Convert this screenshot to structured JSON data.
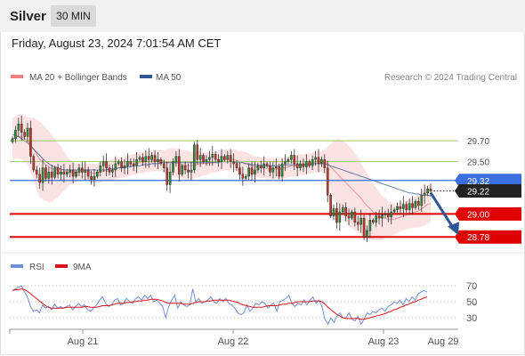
{
  "instrument": "Silver",
  "timeframe": "30 MIN",
  "datetime": "Friday, August 23, 2024 7:01:54 AM CET",
  "credit": "Research © 2024 Trading Central",
  "colors": {
    "bollinger": "#f08080",
    "ma50": "#2f5597",
    "pivot": "#3a6fe0",
    "support": "#e00000",
    "resistance": "#9bc86a",
    "current": "#222222",
    "rsi": "#6f8fd8",
    "rsi_ma": "#d9141b",
    "up_candle": "#2e8b3a",
    "down_candle": "#c0392b"
  },
  "chart_data": [
    {
      "type": "candlestick",
      "legend": [
        "MA 20 + Bollinger Bands",
        "MA 50"
      ],
      "x_ticks": [
        "Aug 21",
        "Aug 22",
        "Aug 23",
        "Aug 29"
      ],
      "ylim": [
        28.68,
        30.16
      ],
      "close": [
        29.72,
        29.8,
        29.86,
        29.78,
        29.74,
        29.82,
        29.55,
        29.42,
        29.38,
        29.3,
        29.44,
        29.34,
        29.4,
        29.35,
        29.44,
        29.38,
        29.4,
        29.38,
        29.4,
        29.42,
        29.36,
        29.4,
        29.44,
        29.4,
        29.42,
        29.36,
        29.33,
        29.36,
        29.4,
        29.46,
        29.5,
        29.44,
        29.4,
        29.42,
        29.48,
        29.5,
        29.44,
        29.46,
        29.5,
        29.48,
        29.46,
        29.52,
        29.54,
        29.5,
        29.55,
        29.52,
        29.56,
        29.5,
        29.52,
        29.48,
        29.44,
        29.28,
        29.4,
        29.5,
        29.55,
        29.38,
        29.46,
        29.42,
        29.4,
        29.42,
        29.66,
        29.52,
        29.56,
        29.5,
        29.52,
        29.54,
        29.57,
        29.52,
        29.5,
        29.55,
        29.52,
        29.56,
        29.5,
        29.48,
        29.44,
        29.38,
        29.34,
        29.36,
        29.44,
        29.38,
        29.42,
        29.46,
        29.44,
        29.48,
        29.46,
        29.4,
        29.44,
        29.45,
        29.36,
        29.48,
        29.5,
        29.52,
        29.56,
        29.48,
        29.44,
        29.48,
        29.45,
        29.5,
        29.46,
        29.52,
        29.54,
        29.48,
        29.52,
        29.44,
        29.18,
        28.98,
        29.05,
        28.92,
        29.02,
        29.06,
        28.98,
        28.96,
        29.02,
        28.92,
        28.9,
        28.96,
        28.78,
        28.84,
        28.94,
        28.92,
        28.98,
        28.96,
        28.99,
        29.0,
        28.97,
        29.02,
        29.04,
        29.07,
        29.05,
        29.09,
        29.04,
        29.1,
        29.06,
        29.12,
        29.08,
        29.18,
        29.2,
        29.24,
        29.22
      ],
      "ma20": [
        29.72,
        29.73,
        29.74,
        29.74,
        29.72,
        29.7,
        29.66,
        29.62,
        29.57,
        29.52,
        29.5,
        29.47,
        29.45,
        29.43,
        29.43,
        29.42,
        29.42,
        29.41,
        29.4,
        29.4,
        29.39,
        29.39,
        29.4,
        29.4,
        29.4,
        29.4,
        29.39,
        29.39,
        29.39,
        29.4,
        29.41,
        29.41,
        29.41,
        29.42,
        29.43,
        29.44,
        29.44,
        29.45,
        29.46,
        29.47,
        29.47,
        29.48,
        29.49,
        29.49,
        29.5,
        29.5,
        29.51,
        29.51,
        29.51,
        29.51,
        29.5,
        29.49,
        29.49,
        29.49,
        29.49,
        29.48,
        29.47,
        29.47,
        29.46,
        29.46,
        29.47,
        29.47,
        29.48,
        29.48,
        29.48,
        29.49,
        29.49,
        29.5,
        29.5,
        29.51,
        29.52,
        29.52,
        29.52,
        29.52,
        29.51,
        29.5,
        29.49,
        29.48,
        29.47,
        29.46,
        29.45,
        29.45,
        29.44,
        29.44,
        29.43,
        29.43,
        29.43,
        29.43,
        29.43,
        29.44,
        29.44,
        29.45,
        29.46,
        29.46,
        29.46,
        29.47,
        29.47,
        29.48,
        29.48,
        29.49,
        29.5,
        29.5,
        29.5,
        29.5,
        29.48,
        29.45,
        29.42,
        29.39,
        29.36,
        29.33,
        29.3,
        29.27,
        29.24,
        29.21,
        29.18,
        29.15,
        29.11,
        29.08,
        29.05,
        29.02,
        29.0,
        28.98,
        28.96,
        28.96,
        28.95,
        28.95,
        28.95,
        28.96,
        28.97,
        28.98,
        28.99,
        29.0,
        29.01,
        29.02,
        29.03,
        29.05,
        29.07,
        29.09,
        29.1
      ],
      "bb_width": [
        0.2,
        0.2,
        0.21,
        0.22,
        0.22,
        0.22,
        0.26,
        0.3,
        0.33,
        0.36,
        0.36,
        0.35,
        0.34,
        0.32,
        0.29,
        0.26,
        0.23,
        0.19,
        0.15,
        0.12,
        0.1,
        0.09,
        0.08,
        0.08,
        0.08,
        0.08,
        0.09,
        0.09,
        0.09,
        0.1,
        0.1,
        0.1,
        0.1,
        0.1,
        0.1,
        0.1,
        0.1,
        0.1,
        0.1,
        0.1,
        0.1,
        0.1,
        0.1,
        0.1,
        0.1,
        0.1,
        0.1,
        0.1,
        0.1,
        0.1,
        0.11,
        0.13,
        0.14,
        0.14,
        0.14,
        0.14,
        0.14,
        0.14,
        0.14,
        0.13,
        0.13,
        0.12,
        0.12,
        0.11,
        0.11,
        0.1,
        0.1,
        0.1,
        0.1,
        0.1,
        0.1,
        0.1,
        0.1,
        0.1,
        0.1,
        0.1,
        0.11,
        0.11,
        0.11,
        0.1,
        0.1,
        0.1,
        0.1,
        0.1,
        0.1,
        0.1,
        0.1,
        0.1,
        0.1,
        0.1,
        0.1,
        0.1,
        0.1,
        0.1,
        0.1,
        0.1,
        0.1,
        0.1,
        0.1,
        0.1,
        0.1,
        0.1,
        0.1,
        0.11,
        0.16,
        0.22,
        0.27,
        0.32,
        0.35,
        0.37,
        0.38,
        0.38,
        0.38,
        0.37,
        0.36,
        0.34,
        0.33,
        0.31,
        0.29,
        0.27,
        0.25,
        0.23,
        0.21,
        0.19,
        0.17,
        0.16,
        0.15,
        0.14,
        0.14,
        0.14,
        0.14,
        0.14,
        0.14,
        0.15,
        0.16,
        0.17,
        0.18,
        0.18,
        0.18
      ],
      "ma50": [
        29.76,
        29.75,
        29.74,
        29.72,
        29.7,
        29.68,
        29.65,
        29.62,
        29.59,
        29.56,
        29.53,
        29.5,
        29.48,
        29.46,
        29.45,
        29.44,
        29.43,
        29.42,
        29.42,
        29.42,
        29.42,
        29.42,
        29.42,
        29.42,
        29.42,
        29.42,
        29.42,
        29.42,
        29.42,
        29.42,
        29.42,
        29.42,
        29.43,
        29.43,
        29.43,
        29.44,
        29.44,
        29.44,
        29.45,
        29.45,
        29.46,
        29.46,
        29.46,
        29.47,
        29.47,
        29.47,
        29.48,
        29.48,
        29.48,
        29.49,
        29.49,
        29.49,
        29.49,
        29.49,
        29.49,
        29.49,
        29.49,
        29.49,
        29.49,
        29.49,
        29.49,
        29.49,
        29.49,
        29.49,
        29.49,
        29.49,
        29.49,
        29.49,
        29.49,
        29.5,
        29.5,
        29.5,
        29.5,
        29.5,
        29.49,
        29.49,
        29.49,
        29.48,
        29.48,
        29.47,
        29.47,
        29.47,
        29.46,
        29.46,
        29.46,
        29.46,
        29.46,
        29.46,
        29.46,
        29.47,
        29.47,
        29.47,
        29.47,
        29.47,
        29.47,
        29.47,
        29.47,
        29.47,
        29.47,
        29.48,
        29.48,
        29.48,
        29.48,
        29.48,
        29.47,
        29.46,
        29.45,
        29.44,
        29.43,
        29.42,
        29.41,
        29.4,
        29.39,
        29.38,
        29.37,
        29.36,
        29.35,
        29.34,
        29.33,
        29.32,
        29.31,
        29.3,
        29.29,
        29.28,
        29.27,
        29.26,
        29.25,
        29.24,
        29.23,
        29.22,
        29.21,
        29.2,
        29.2,
        29.19,
        29.19,
        29.18,
        29.18,
        29.18,
        29.17
      ],
      "levels": [
        {
          "value": 29.7,
          "label": "29.70",
          "kind": "resistance"
        },
        {
          "value": 29.5,
          "label": "29.50",
          "kind": "resistance"
        },
        {
          "value": 29.32,
          "label": "29.32",
          "kind": "pivot"
        },
        {
          "value": 29.22,
          "label": "29.22",
          "kind": "current"
        },
        {
          "value": 29.0,
          "label": "29.00",
          "kind": "support"
        },
        {
          "value": 28.78,
          "label": "28.78",
          "kind": "support"
        }
      ],
      "arrow": {
        "from_value": 29.22,
        "to_value": 28.78,
        "direction": "down"
      }
    },
    {
      "type": "line",
      "legend": [
        "RSI",
        "9MA"
      ],
      "ylim": [
        20,
        80
      ],
      "y_ticks": [
        70,
        50,
        30
      ],
      "rsi": [
        64,
        66,
        68,
        70,
        62,
        56,
        44,
        38,
        40,
        36,
        46,
        42,
        44,
        40,
        47,
        42,
        44,
        42,
        44,
        46,
        40,
        44,
        48,
        44,
        46,
        40,
        38,
        42,
        46,
        52,
        56,
        48,
        44,
        46,
        52,
        54,
        46,
        48,
        54,
        50,
        48,
        54,
        56,
        52,
        58,
        54,
        58,
        50,
        52,
        48,
        44,
        30,
        44,
        52,
        58,
        42,
        50,
        46,
        44,
        46,
        66,
        50,
        54,
        48,
        50,
        52,
        56,
        50,
        48,
        54,
        50,
        54,
        48,
        46,
        42,
        36,
        34,
        36,
        46,
        38,
        42,
        48,
        46,
        50,
        48,
        42,
        46,
        48,
        38,
        50,
        52,
        54,
        58,
        48,
        44,
        48,
        46,
        52,
        46,
        52,
        56,
        48,
        52,
        44,
        28,
        22,
        30,
        24,
        32,
        36,
        30,
        30,
        36,
        28,
        26,
        32,
        22,
        28,
        36,
        34,
        38,
        36,
        40,
        42,
        38,
        44,
        46,
        50,
        48,
        52,
        46,
        54,
        50,
        56,
        52,
        60,
        62,
        64,
        62
      ],
      "ma9": [
        64,
        65,
        65,
        66,
        65,
        63,
        60,
        57,
        54,
        51,
        48,
        45,
        43,
        42,
        42,
        42,
        42,
        42,
        43,
        43,
        43,
        43,
        43,
        43,
        44,
        44,
        43,
        43,
        43,
        44,
        45,
        45,
        45,
        46,
        47,
        48,
        48,
        48,
        49,
        49,
        50,
        50,
        51,
        51,
        52,
        52,
        53,
        53,
        53,
        52,
        51,
        49,
        48,
        48,
        48,
        48,
        48,
        47,
        47,
        47,
        48,
        49,
        50,
        50,
        50,
        51,
        51,
        52,
        52,
        52,
        52,
        52,
        52,
        51,
        50,
        49,
        47,
        46,
        45,
        44,
        43,
        43,
        43,
        43,
        44,
        45,
        45,
        45,
        45,
        46,
        47,
        47,
        48,
        48,
        49,
        50,
        50,
        50,
        50,
        50,
        51,
        51,
        51,
        50,
        47,
        43,
        40,
        37,
        34,
        32,
        30,
        29,
        29,
        29,
        29,
        29,
        28,
        28,
        29,
        30,
        31,
        32,
        33,
        34,
        35,
        37,
        38,
        40,
        41,
        43,
        44,
        46,
        47,
        49,
        50,
        52,
        53,
        55,
        56
      ]
    }
  ]
}
